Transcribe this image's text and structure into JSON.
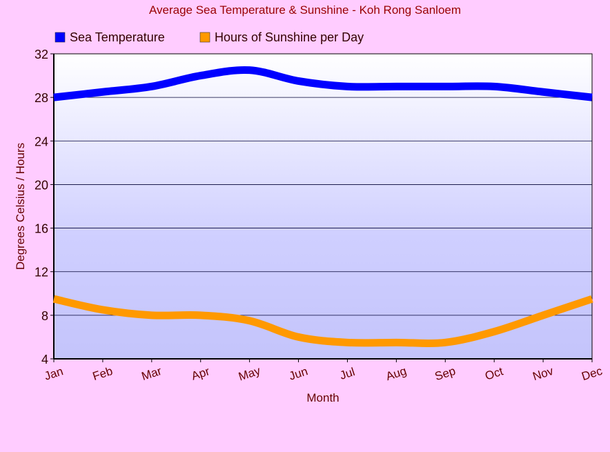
{
  "chart_data": {
    "type": "line",
    "title": "Average Sea Temperature & Sunshine - Koh Rong Sanloem",
    "xlabel": "Month",
    "ylabel": "Degrees Celsius / Hours",
    "ylim": [
      4,
      32
    ],
    "yticks": [
      4,
      8,
      12,
      16,
      20,
      24,
      28,
      32
    ],
    "grid": true,
    "legend_position": "top",
    "categories": [
      "Jan",
      "Feb",
      "Mar",
      "Apr",
      "May",
      "Jun",
      "Jul",
      "Aug",
      "Sep",
      "Oct",
      "Nov",
      "Dec"
    ],
    "series": [
      {
        "name": "Sea Temperature",
        "color": "#0000ff",
        "values": [
          28,
          28.5,
          29,
          30,
          30.5,
          29.5,
          29,
          29,
          29,
          29,
          28.5,
          28
        ]
      },
      {
        "name": "Hours of Sunshine per Day",
        "color": "#ff9900",
        "values": [
          9.5,
          8.5,
          8,
          8,
          7.5,
          6,
          5.5,
          5.5,
          5.5,
          6.5,
          8,
          9.5
        ]
      }
    ]
  }
}
